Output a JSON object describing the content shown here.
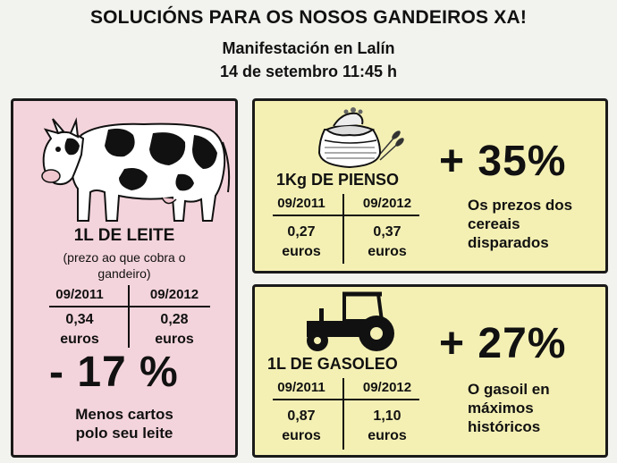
{
  "header": {
    "title": "SOLUCIÓNS PARA OS NOSOS GANDEIROS XA!",
    "subtitle": "Manifestación en Lalín",
    "date": "14 de setembro 11:45 h"
  },
  "milk": {
    "product": "1L DE LEITE",
    "note_line1": "(prezo ao que cobra o",
    "note_line2": "gandeiro)",
    "col1_date": "09/2011",
    "col2_date": "09/2012",
    "col1_value": "0,34",
    "col2_value": "0,28",
    "unit": "euros",
    "change": "- 17 %",
    "comment_line1": "Menos cartos",
    "comment_line2": "polo seu leite"
  },
  "feed": {
    "product": "1Kg DE PIENSO",
    "col1_date": "09/2011",
    "col2_date": "09/2012",
    "col1_value": "0,27",
    "col2_value": "0,37",
    "unit": "euros",
    "change": "+ 35%",
    "comment_line1": "Os prezos dos",
    "comment_line2": "cereais",
    "comment_line3": "disparados"
  },
  "fuel": {
    "product": "1L DE GASOLEO",
    "col1_date": "09/2011",
    "col2_date": "09/2012",
    "col1_value": "0,87",
    "col2_value": "1,10",
    "unit": "euros",
    "change": "+ 27%",
    "comment_line1": "O gasoil en",
    "comment_line2": "máximos",
    "comment_line3": "históricos"
  },
  "icons": {
    "cow": "cow-icon",
    "feed_sack": "feed-sack-icon",
    "tractor": "tractor-icon"
  },
  "colors": {
    "milk_panel": "#f4d4dc",
    "price_panels": "#f4f0b4",
    "border": "#1a1a1a"
  }
}
